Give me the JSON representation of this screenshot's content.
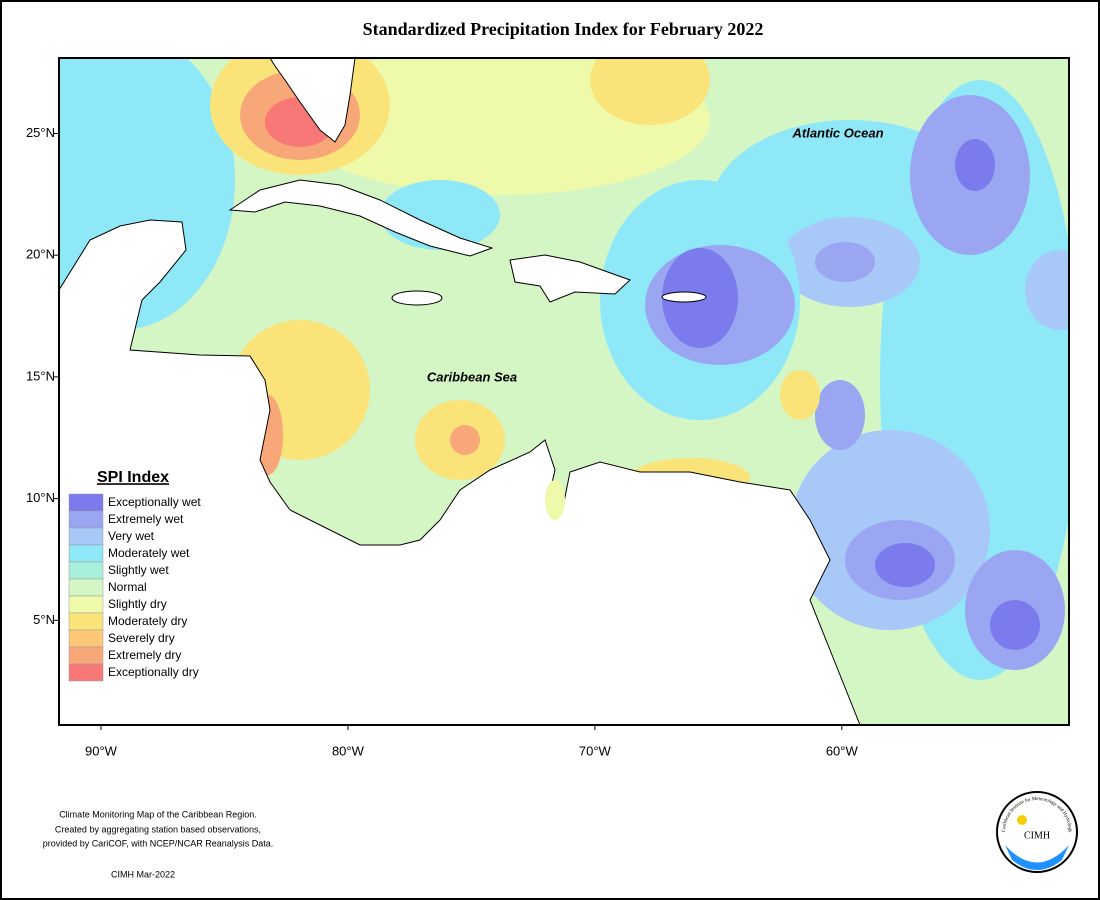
{
  "title": "Standardized Precipitation Index for February 2022",
  "map": {
    "xlim": [
      -91.7,
      -50.8
    ],
    "ylim": [
      0.7,
      28.1
    ],
    "xticks": [
      {
        "value": -90,
        "label": "90°W"
      },
      {
        "value": -80,
        "label": "80°W"
      },
      {
        "value": -70,
        "label": "70°W"
      },
      {
        "value": -60,
        "label": "60°W"
      }
    ],
    "yticks": [
      {
        "value": 5,
        "label": "5°N"
      },
      {
        "value": 10,
        "label": "10°N"
      },
      {
        "value": 15,
        "label": "15°N"
      },
      {
        "value": 20,
        "label": "20°N"
      },
      {
        "value": 25,
        "label": "25°N"
      }
    ],
    "labels": [
      "Atlantic Ocean",
      "Caribbean Sea"
    ]
  },
  "legend": {
    "title": "SPI Index",
    "items": [
      {
        "label": "Exceptionally wet",
        "color": "#7b7bee"
      },
      {
        "label": "Extremely wet",
        "color": "#9aa6f2"
      },
      {
        "label": "Very wet",
        "color": "#a8c8f8"
      },
      {
        "label": "Moderately wet",
        "color": "#8ee8f8"
      },
      {
        "label": "Slightly wet",
        "color": "#a8f0dc"
      },
      {
        "label": "Normal",
        "color": "#d4f5c4"
      },
      {
        "label": "Slightly dry",
        "color": "#eefaaa"
      },
      {
        "label": "Moderately dry",
        "color": "#fae47a"
      },
      {
        "label": "Severely dry",
        "color": "#fcc878"
      },
      {
        "label": "Extremely dry",
        "color": "#f8a878"
      },
      {
        "label": "Exceptionally dry",
        "color": "#f87878"
      }
    ]
  },
  "footer": {
    "notes": [
      "Climate Monitoring Map of the Caribbean Region.",
      "Created by aggregating station based observations,",
      "provided by CariCOF, with NCEP/NCAR Reanalysis Data."
    ],
    "credit": "CIMH Mar-2022"
  },
  "logo": {
    "name": "CIMH",
    "ring": "Caribbean Institute for Meteorology and Hydrology"
  }
}
